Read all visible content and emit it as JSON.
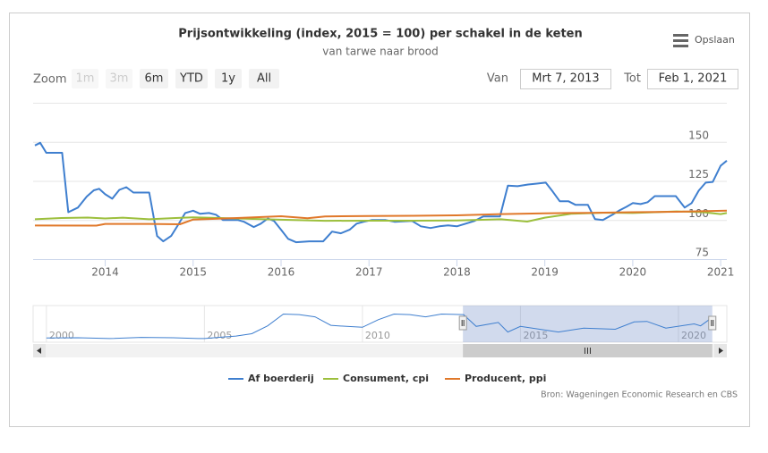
{
  "chart_data": {
    "type": "line",
    "title": "Prijsontwikkeling (index, 2015 = 100) per schakel in de keten",
    "subtitle": "van tarwe naar brood",
    "export_label": "Opslaan",
    "credits": "Bron: Wageningen Economic Research en CBS",
    "range_selector": {
      "zoom_label": "Zoom",
      "buttons": [
        {
          "label": "1m",
          "enabled": false
        },
        {
          "label": "3m",
          "enabled": false
        },
        {
          "label": "6m",
          "enabled": true
        },
        {
          "label": "YTD",
          "enabled": true
        },
        {
          "label": "1y",
          "enabled": true
        },
        {
          "label": "All",
          "enabled": true
        }
      ],
      "from_label": "Van",
      "from": "Mrt 7, 2013",
      "to_label": "Tot",
      "to": "Feb 1, 2021"
    },
    "xlim": [
      2013.18,
      2021.07
    ],
    "xticks": [
      2014,
      2015,
      2016,
      2017,
      2018,
      2019,
      2020,
      2021
    ],
    "ylim": [
      75,
      175
    ],
    "yticks": [
      75,
      100,
      125,
      150
    ],
    "grid": true,
    "series": [
      {
        "name": "Af boerderij",
        "color": "#3f7fcf",
        "x": [
          2013.2,
          2013.26,
          2013.33,
          2013.51,
          2013.58,
          2013.69,
          2013.79,
          2013.87,
          2013.93,
          2014.0,
          2014.08,
          2014.16,
          2014.24,
          2014.32,
          2014.5,
          2014.59,
          2014.66,
          2014.75,
          2014.83,
          2014.91,
          2015.0,
          2015.08,
          2015.18,
          2015.26,
          2015.34,
          2015.51,
          2015.58,
          2015.69,
          2015.77,
          2015.85,
          2015.92,
          2016.0,
          2016.08,
          2016.17,
          2016.32,
          2016.48,
          2016.58,
          2016.68,
          2016.78,
          2016.86,
          2016.94,
          2017.03,
          2017.19,
          2017.29,
          2017.49,
          2017.59,
          2017.7,
          2017.8,
          2017.9,
          2018.0,
          2018.1,
          2018.2,
          2018.3,
          2018.49,
          2018.58,
          2018.69,
          2018.81,
          2018.91,
          2019.01,
          2019.09,
          2019.17,
          2019.27,
          2019.35,
          2019.49,
          2019.57,
          2019.66,
          2019.77,
          2019.85,
          2019.93,
          2020.0,
          2020.09,
          2020.17,
          2020.25,
          2020.49,
          2020.59,
          2020.67,
          2020.75,
          2020.83,
          2020.91,
          2021.0,
          2021.07
        ],
        "values": [
          147.7,
          149.4,
          143,
          143,
          105,
          108,
          115,
          119,
          120,
          116.5,
          113.6,
          119.3,
          121,
          117.6,
          117.6,
          89.8,
          86.4,
          89.8,
          97,
          104.5,
          106,
          104,
          104.5,
          103.4,
          100,
          100,
          98.9,
          95.5,
          97.7,
          101,
          99.4,
          93.8,
          88,
          85.8,
          86.4,
          86.4,
          92.6,
          91.5,
          93.8,
          97.7,
          98.9,
          100,
          100,
          98.9,
          99.4,
          96,
          94.9,
          96,
          96.6,
          96,
          97.7,
          99.4,
          102.3,
          102.3,
          122,
          121.6,
          122.7,
          123.3,
          123.9,
          118.2,
          112,
          112,
          109.7,
          109.7,
          100.6,
          100,
          103.4,
          106.2,
          108.5,
          110.8,
          110.2,
          111.4,
          115.3,
          115.3,
          108,
          110.8,
          118.8,
          123.9,
          124.4,
          134.7,
          138
        ]
      },
      {
        "name": "Consument, cpi",
        "color": "#9cbf3c",
        "x": [
          2013.2,
          2013.5,
          2013.8,
          2014.0,
          2014.2,
          2014.5,
          2014.8,
          2015.0,
          2015.5,
          2016.0,
          2016.5,
          2017.0,
          2017.5,
          2018.0,
          2018.5,
          2018.8,
          2019.0,
          2019.3,
          2019.7,
          2020.0,
          2020.5,
          2020.8,
          2021.0,
          2021.07
        ],
        "values": [
          100.5,
          101.3,
          101.6,
          101,
          101.5,
          100.5,
          101.3,
          101.7,
          101,
          100.2,
          99.5,
          99.6,
          99.6,
          99.7,
          100.5,
          99,
          101.5,
          104,
          104.7,
          104.5,
          105.5,
          105,
          103.8,
          104.5
        ]
      },
      {
        "name": "Producent, ppi",
        "color": "#e0782a",
        "x": [
          2013.2,
          2013.9,
          2014.0,
          2014.5,
          2014.85,
          2015.0,
          2015.5,
          2016.0,
          2016.3,
          2016.5,
          2017.0,
          2017.5,
          2018.0,
          2018.5,
          2019.0,
          2019.5,
          2020.0,
          2020.5,
          2021.07
        ],
        "values": [
          96.5,
          96.4,
          97.5,
          97.5,
          97.3,
          100.3,
          101.3,
          102.4,
          101.2,
          102.3,
          102.6,
          102.7,
          103,
          103.8,
          104.3,
          104.6,
          105,
          105.3,
          106
        ]
      }
    ],
    "navigator": {
      "xlim": [
        1999.58,
        2021.53
      ],
      "xticks": [
        2000,
        2005,
        2010,
        2015,
        2020
      ],
      "ylim": [
        50,
        180
      ],
      "x": [
        2000,
        2001,
        2002,
        2003,
        2004,
        2004.8,
        2005,
        2006,
        2006.5,
        2007,
        2007.5,
        2008,
        2008.5,
        2009,
        2009.5,
        2010,
        2010.5,
        2011,
        2011.5,
        2012,
        2012.5,
        2013.2,
        2013.6,
        2014.3,
        2014.6,
        2015,
        2016.2,
        2017,
        2018,
        2018.6,
        2019,
        2019.6,
        2020.5,
        2020.7,
        2021.07
      ],
      "values": [
        65,
        66,
        63,
        67,
        66,
        63,
        63,
        72,
        80,
        108,
        150,
        148,
        140,
        110,
        106,
        103,
        130,
        150,
        148,
        140,
        150,
        148,
        106,
        120,
        86,
        106,
        86,
        100,
        96,
        122,
        124,
        100,
        115,
        108,
        138
      ]
    }
  }
}
